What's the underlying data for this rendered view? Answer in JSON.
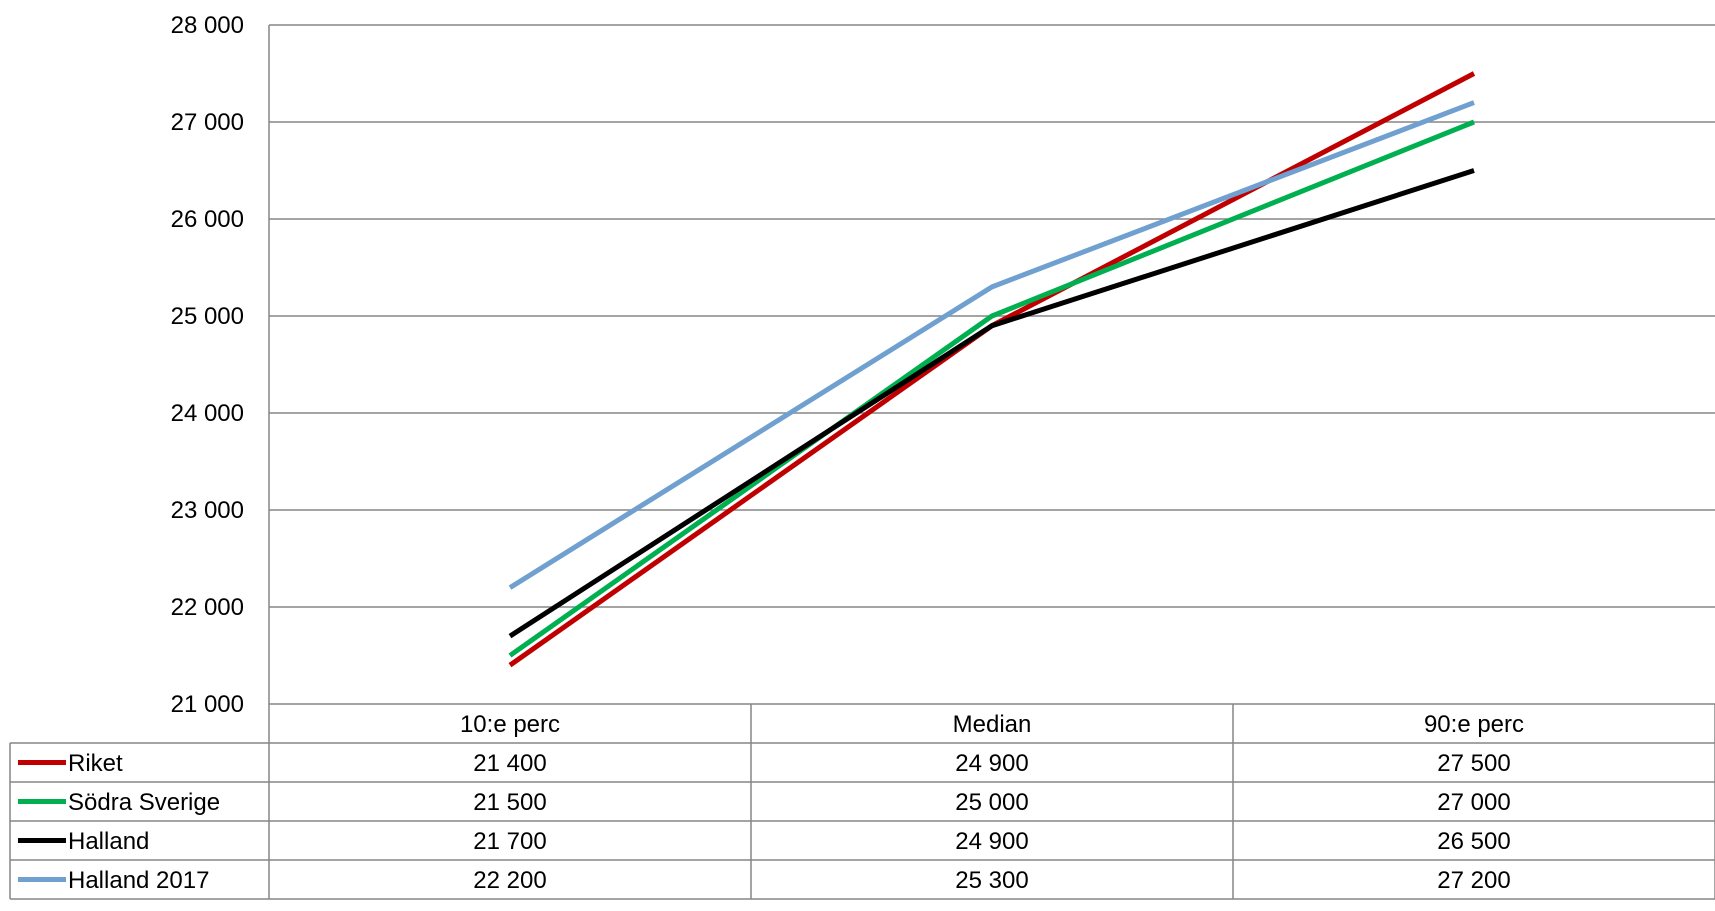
{
  "chart_data": {
    "type": "line",
    "categories": [
      "10:e perc",
      "Median",
      "90:e perc"
    ],
    "series": [
      {
        "name": "Riket",
        "color": "#c00000",
        "values": [
          21400,
          24900,
          27500
        ],
        "labels": [
          "21 400",
          "24 900",
          "27 500"
        ]
      },
      {
        "name": "Södra Sverige",
        "color": "#00b050",
        "values": [
          21500,
          25000,
          27000
        ],
        "labels": [
          "21 500",
          "25 000",
          "27 000"
        ]
      },
      {
        "name": "Halland",
        "color": "#000000",
        "values": [
          21700,
          24900,
          26500
        ],
        "labels": [
          "21 700",
          "24 900",
          "26 500"
        ]
      },
      {
        "name": "Halland 2017",
        "color": "#6fa0d0",
        "values": [
          22200,
          25300,
          27200
        ],
        "labels": [
          "22 200",
          "25 300",
          "27 200"
        ]
      }
    ],
    "ylim": [
      21000,
      28000
    ],
    "yticks": [
      21000,
      22000,
      23000,
      24000,
      25000,
      26000,
      27000,
      28000
    ],
    "ytick_labels": [
      "21 000",
      "22 000",
      "23 000",
      "24 000",
      "25 000",
      "26 000",
      "27 000",
      "28 000"
    ],
    "grid": true,
    "legend": "data-table",
    "title": "",
    "xlabel": "",
    "ylabel": ""
  }
}
